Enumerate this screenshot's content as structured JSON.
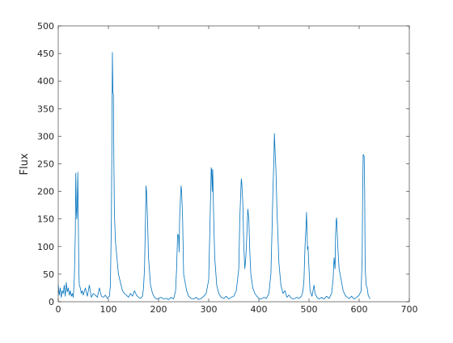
{
  "chart_data": {
    "type": "line",
    "ylabel": "Flux",
    "color": "#0072bd",
    "xlim": [
      0,
      700
    ],
    "xticks": [
      0,
      100,
      200,
      300,
      400,
      500,
      600,
      700
    ],
    "ylim": [
      0,
      500
    ],
    "yticks": [
      0,
      50,
      100,
      150,
      200,
      250,
      300,
      350,
      400,
      450,
      500
    ],
    "x": [
      0,
      2,
      4,
      6,
      8,
      10,
      12,
      14,
      16,
      18,
      20,
      22,
      24,
      26,
      28,
      30,
      32,
      34,
      35,
      36,
      37,
      38,
      39,
      40,
      41,
      42,
      44,
      46,
      48,
      50,
      54,
      58,
      62,
      66,
      70,
      74,
      78,
      82,
      86,
      90,
      94,
      98,
      102,
      104,
      106,
      107,
      108,
      109,
      110,
      111,
      112,
      114,
      116,
      120,
      124,
      128,
      132,
      136,
      140,
      144,
      148,
      152,
      156,
      160,
      164,
      168,
      170,
      172,
      174,
      175,
      176,
      178,
      180,
      184,
      188,
      192,
      196,
      200,
      205,
      210,
      215,
      220,
      225,
      230,
      234,
      236,
      238,
      240,
      241,
      242,
      244,
      245,
      246,
      248,
      250,
      252,
      256,
      260,
      265,
      270,
      275,
      280,
      285,
      290,
      295,
      300,
      302,
      304,
      305,
      306,
      307,
      308,
      310,
      312,
      316,
      320,
      325,
      330,
      335,
      340,
      345,
      350,
      355,
      360,
      362,
      364,
      365,
      366,
      368,
      370,
      372,
      374,
      376,
      378,
      380,
      382,
      384,
      388,
      392,
      396,
      400,
      405,
      410,
      415,
      420,
      424,
      426,
      428,
      430,
      431,
      432,
      434,
      436,
      438,
      440,
      444,
      448,
      452,
      456,
      460,
      465,
      470,
      475,
      480,
      485,
      488,
      490,
      492,
      494,
      495,
      496,
      497,
      498,
      500,
      502,
      506,
      510,
      512,
      516,
      520,
      525,
      530,
      535,
      540,
      545,
      548,
      550,
      552,
      553,
      554,
      555,
      556,
      558,
      560,
      564,
      568,
      572,
      576,
      580,
      585,
      590,
      595,
      600,
      604,
      606,
      607,
      608,
      609,
      610,
      611,
      612,
      614,
      616,
      618,
      620,
      622
    ],
    "values": [
      30,
      12,
      25,
      8,
      20,
      15,
      30,
      10,
      35,
      18,
      25,
      12,
      20,
      10,
      15,
      8,
      40,
      120,
      233,
      170,
      150,
      180,
      235,
      150,
      60,
      30,
      25,
      15,
      20,
      12,
      25,
      10,
      30,
      8,
      15,
      12,
      8,
      25,
      10,
      8,
      12,
      6,
      10,
      30,
      150,
      300,
      452,
      380,
      375,
      250,
      160,
      110,
      90,
      50,
      35,
      20,
      15,
      12,
      8,
      15,
      10,
      20,
      12,
      8,
      6,
      10,
      25,
      60,
      150,
      210,
      200,
      150,
      80,
      30,
      15,
      8,
      5,
      6,
      8,
      5,
      6,
      4,
      8,
      5,
      20,
      60,
      122,
      120,
      90,
      150,
      195,
      210,
      200,
      150,
      50,
      40,
      20,
      10,
      6,
      5,
      8,
      4,
      6,
      10,
      15,
      40,
      120,
      200,
      243,
      238,
      200,
      240,
      150,
      80,
      30,
      15,
      8,
      6,
      10,
      5,
      8,
      10,
      20,
      60,
      150,
      200,
      223,
      215,
      180,
      100,
      60,
      80,
      120,
      168,
      150,
      90,
      50,
      25,
      15,
      10,
      6,
      5,
      8,
      6,
      15,
      50,
      120,
      200,
      260,
      305,
      280,
      240,
      170,
      120,
      70,
      30,
      15,
      20,
      8,
      12,
      6,
      5,
      8,
      6,
      10,
      20,
      40,
      100,
      135,
      162,
      130,
      95,
      100,
      60,
      20,
      10,
      30,
      15,
      8,
      5,
      8,
      5,
      10,
      6,
      15,
      40,
      80,
      60,
      120,
      145,
      152,
      130,
      90,
      60,
      40,
      20,
      12,
      8,
      6,
      10,
      5,
      8,
      12,
      20,
      80,
      200,
      267,
      265,
      263,
      200,
      60,
      30,
      25,
      12,
      8,
      5
    ]
  }
}
